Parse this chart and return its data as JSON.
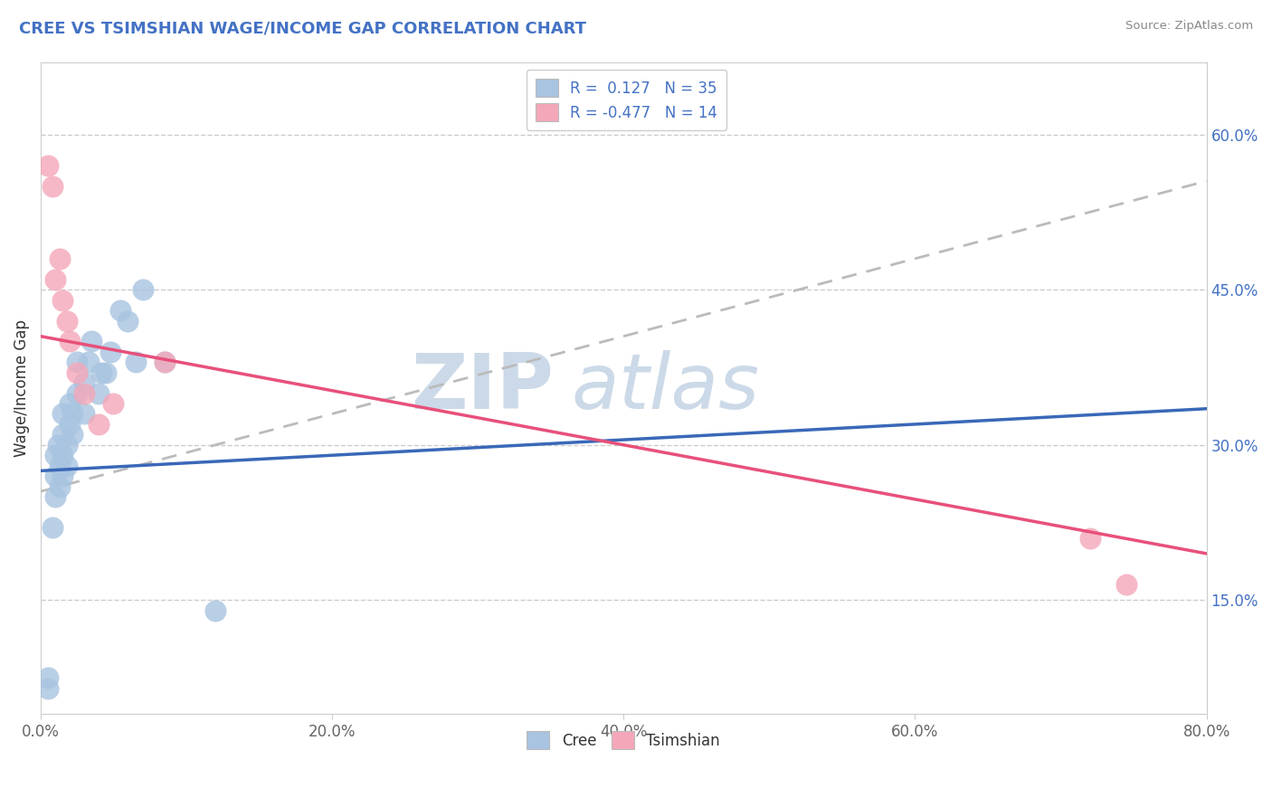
{
  "title": "CREE VS TSIMSHIAN WAGE/INCOME GAP CORRELATION CHART",
  "source": "Source: ZipAtlas.com",
  "ylabel": "Wage/Income Gap",
  "xlim": [
    0.0,
    0.8
  ],
  "ylim": [
    0.04,
    0.67
  ],
  "xticks": [
    0.0,
    0.2,
    0.4,
    0.6,
    0.8
  ],
  "xtick_labels": [
    "0.0%",
    "20.0%",
    "40.0%",
    "60.0%",
    "80.0%"
  ],
  "ytick_labels_right": [
    "15.0%",
    "30.0%",
    "45.0%",
    "60.0%"
  ],
  "ytick_vals_right": [
    0.15,
    0.3,
    0.45,
    0.6
  ],
  "cree_R": 0.127,
  "cree_N": 35,
  "tsimshian_R": -0.477,
  "tsimshian_N": 14,
  "cree_color": "#a8c4e0",
  "tsimshian_color": "#f4a7b9",
  "cree_line_color": "#3a68b8",
  "tsimshian_line_color": "#e8507a",
  "overall_line_color": "#bbbbbb",
  "watermark_zip": "ZIP",
  "watermark_atlas": "atlas",
  "watermark_color": "#ccd9e8",
  "cree_x": [
    0.005,
    0.005,
    0.008,
    0.01,
    0.01,
    0.01,
    0.012,
    0.013,
    0.013,
    0.015,
    0.015,
    0.015,
    0.015,
    0.018,
    0.018,
    0.02,
    0.02,
    0.022,
    0.022,
    0.025,
    0.025,
    0.03,
    0.03,
    0.033,
    0.035,
    0.04,
    0.042,
    0.045,
    0.048,
    0.055,
    0.06,
    0.065,
    0.07,
    0.085,
    0.12
  ],
  "cree_y": [
    0.065,
    0.075,
    0.22,
    0.25,
    0.27,
    0.29,
    0.3,
    0.26,
    0.28,
    0.27,
    0.29,
    0.31,
    0.33,
    0.28,
    0.3,
    0.32,
    0.34,
    0.31,
    0.33,
    0.35,
    0.38,
    0.33,
    0.36,
    0.38,
    0.4,
    0.35,
    0.37,
    0.37,
    0.39,
    0.43,
    0.42,
    0.38,
    0.45,
    0.38,
    0.14
  ],
  "tsimshian_x": [
    0.005,
    0.008,
    0.01,
    0.013,
    0.015,
    0.018,
    0.02,
    0.025,
    0.03,
    0.04,
    0.05,
    0.085,
    0.72,
    0.745
  ],
  "tsimshian_y": [
    0.57,
    0.55,
    0.46,
    0.48,
    0.44,
    0.42,
    0.4,
    0.37,
    0.35,
    0.32,
    0.34,
    0.38,
    0.21,
    0.165
  ],
  "cree_line_x0": 0.0,
  "cree_line_y0": 0.275,
  "cree_line_x1": 0.8,
  "cree_line_y1": 0.335,
  "tsim_line_x0": 0.0,
  "tsim_line_y0": 0.405,
  "tsim_line_x1": 0.8,
  "tsim_line_y1": 0.195,
  "overall_line_x0": 0.0,
  "overall_line_y0": 0.255,
  "overall_line_x1": 0.8,
  "overall_line_y1": 0.555,
  "legend_items": [
    {
      "label": "R =  0.127   N = 35",
      "color": "#a8c4e0"
    },
    {
      "label": "R = -0.477   N = 14",
      "color": "#f4a7b9"
    }
  ],
  "background_color": "#ffffff",
  "grid_color": "#cccccc"
}
